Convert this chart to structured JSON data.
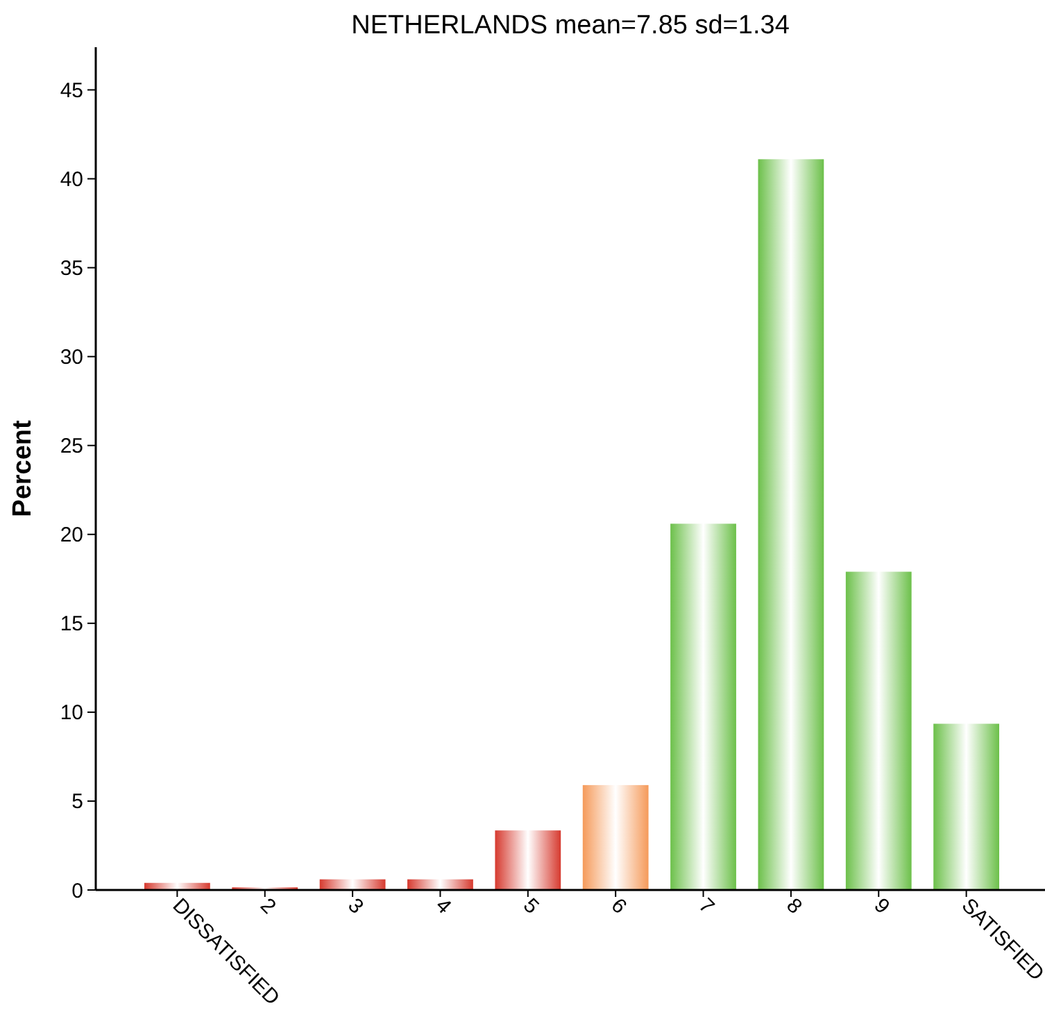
{
  "chart_data": {
    "type": "bar",
    "title": "NETHERLANDS mean=7.85 sd=1.34",
    "ylabel": "Percent",
    "categories": [
      "DISSATISFIED",
      "2",
      "3",
      "4",
      "5",
      "6",
      "7",
      "8",
      "9",
      "SATISFIED"
    ],
    "values": [
      0.4,
      0.15,
      0.6,
      0.6,
      3.35,
      5.9,
      20.6,
      41.1,
      17.9,
      9.35
    ],
    "colors": [
      "#d63a2f",
      "#d63a2f",
      "#d63a2f",
      "#d63a2f",
      "#d63a2f",
      "#f59a5a",
      "#6cc04a",
      "#6cc04a",
      "#6cc04a",
      "#6cc04a"
    ],
    "ylim": [
      0,
      47.4
    ],
    "yticks": [
      0,
      5,
      10,
      15,
      20,
      25,
      30,
      35,
      40,
      45
    ],
    "grid": false
  }
}
